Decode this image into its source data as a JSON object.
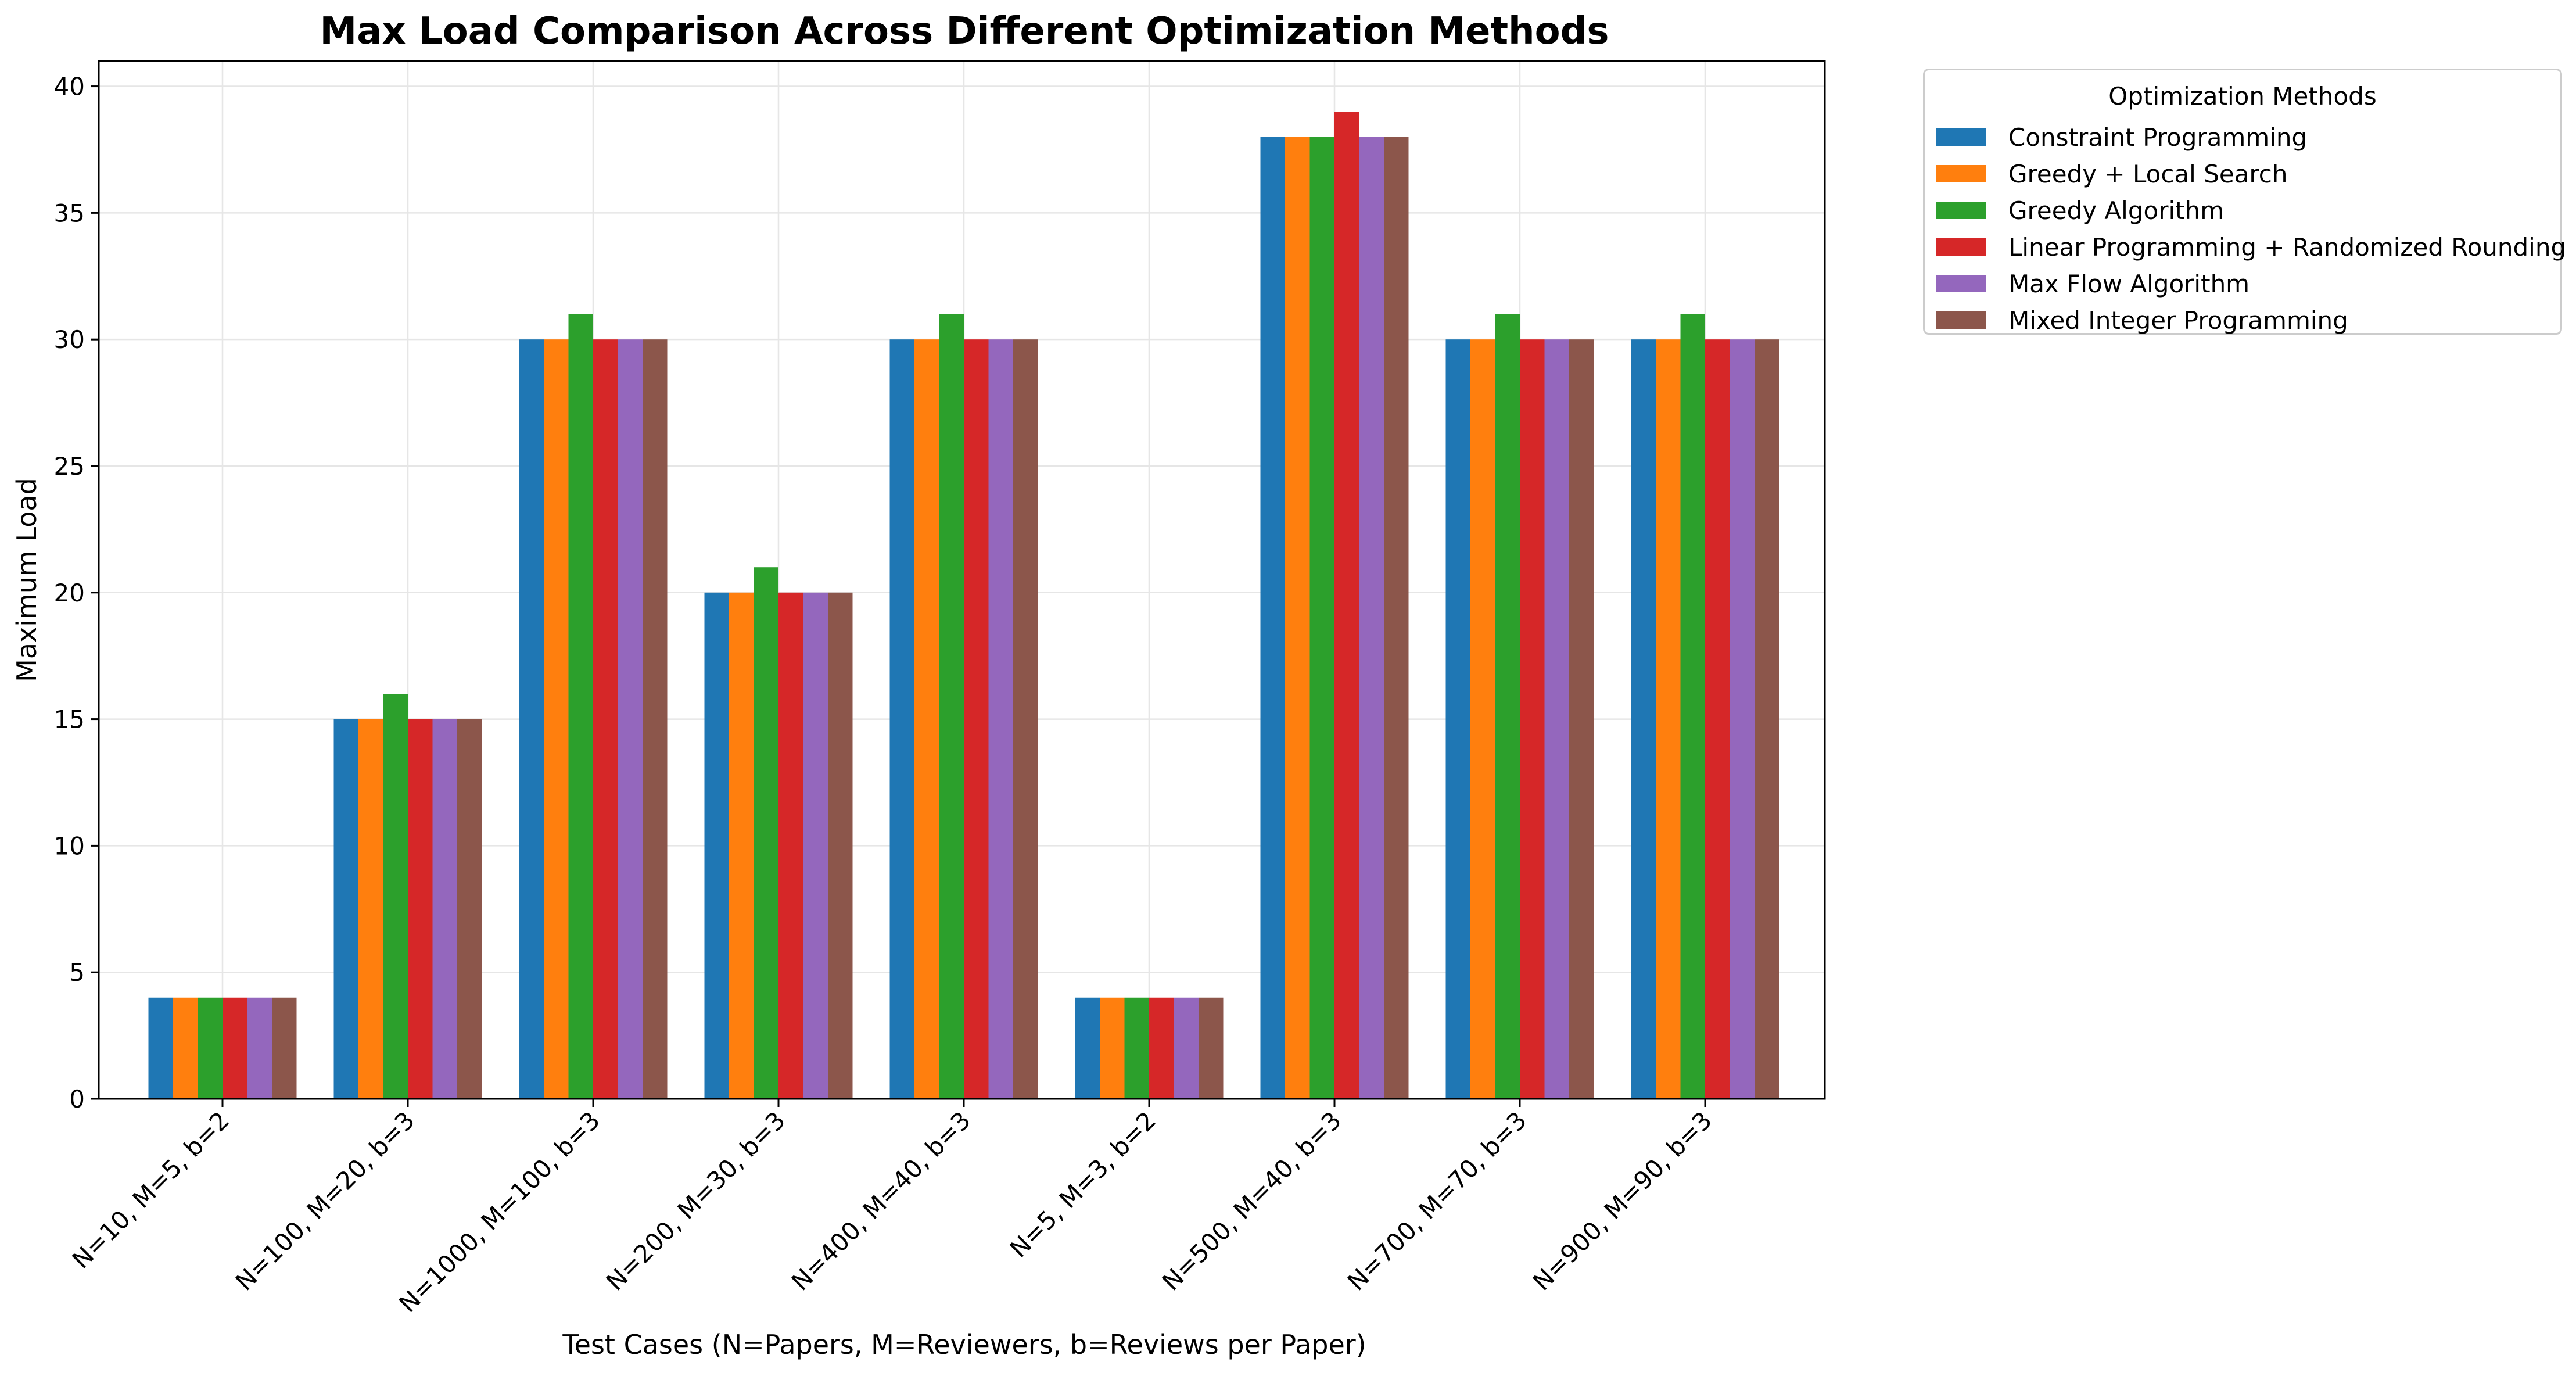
{
  "chart_data": {
    "type": "bar",
    "title": "Max Load Comparison Across Different Optimization Methods",
    "xlabel": "Test Cases (N=Papers, M=Reviewers, b=Reviews per Paper)",
    "ylabel": "Maximum Load",
    "ylim": [
      0,
      41
    ],
    "yticks": [
      0,
      5,
      10,
      15,
      20,
      25,
      30,
      35,
      40
    ],
    "grid": true,
    "legend_title": "Optimization Methods",
    "legend_position": "outside-top-right",
    "categories": [
      "N=10, M=5, b=2",
      "N=100, M=20, b=3",
      "N=1000, M=100, b=3",
      "N=200, M=30, b=3",
      "N=400, M=40, b=3",
      "N=5, M=3, b=2",
      "N=500, M=40, b=3",
      "N=700, M=70, b=3",
      "N=900, M=90, b=3"
    ],
    "series": [
      {
        "name": "Constraint Programming",
        "color": "#1f77b4",
        "values": [
          4,
          15,
          30,
          20,
          30,
          4,
          38,
          30,
          30
        ]
      },
      {
        "name": "Greedy + Local Search",
        "color": "#ff7f0e",
        "values": [
          4,
          15,
          30,
          20,
          30,
          4,
          38,
          30,
          30
        ]
      },
      {
        "name": "Greedy Algorithm",
        "color": "#2ca02c",
        "values": [
          4,
          16,
          31,
          21,
          31,
          4,
          38,
          31,
          31
        ]
      },
      {
        "name": "Linear Programming + Randomized Rounding",
        "color": "#d62728",
        "values": [
          4,
          15,
          30,
          20,
          30,
          4,
          39,
          30,
          30
        ]
      },
      {
        "name": "Max Flow Algorithm",
        "color": "#9467bd",
        "values": [
          4,
          15,
          30,
          20,
          30,
          4,
          38,
          30,
          30
        ]
      },
      {
        "name": "Mixed Integer Programming",
        "color": "#8c564b",
        "values": [
          4,
          15,
          30,
          20,
          30,
          4,
          38,
          30,
          30
        ]
      }
    ]
  }
}
